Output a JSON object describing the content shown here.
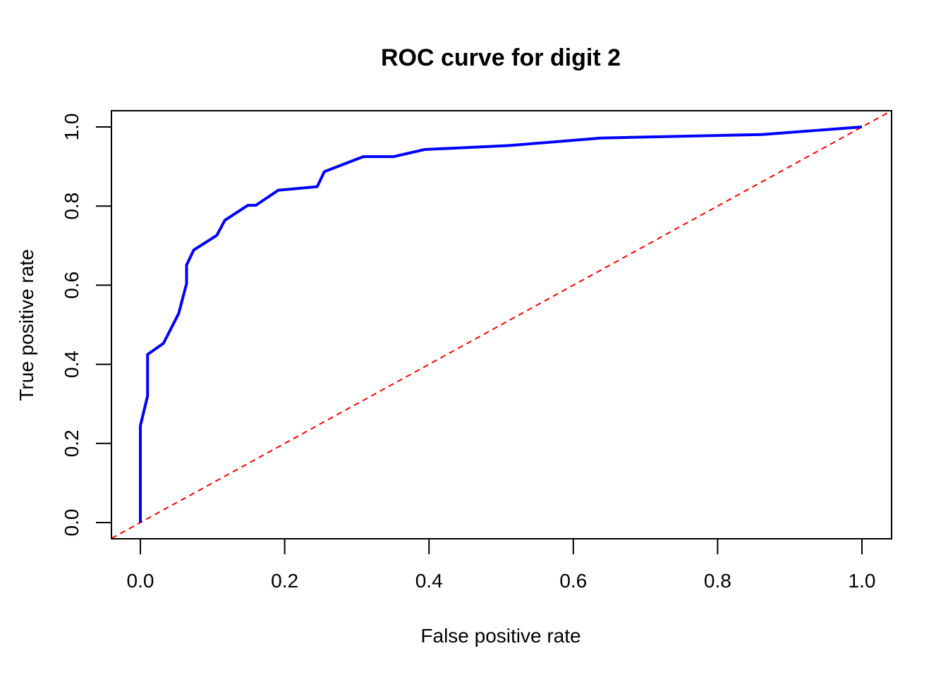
{
  "chart_data": {
    "type": "line",
    "title": "ROC curve for digit 2",
    "xlabel": "False positive rate",
    "ylabel": "True positive rate",
    "xlim": [
      0.0,
      1.0
    ],
    "ylim": [
      0.0,
      1.0
    ],
    "xticks": [
      "0.0",
      "0.2",
      "0.4",
      "0.6",
      "0.8",
      "1.0"
    ],
    "yticks": [
      "0.0",
      "0.2",
      "0.4",
      "0.6",
      "0.8",
      "1.0"
    ],
    "grid": false,
    "series": [
      {
        "color": "#0000ff",
        "style": "solid",
        "x": [
          0.0,
          0.0,
          0.01,
          0.01,
          0.032,
          0.053,
          0.064,
          0.064,
          0.074,
          0.106,
          0.117,
          0.149,
          0.16,
          0.191,
          0.245,
          0.255,
          0.309,
          0.351,
          0.394,
          0.511,
          0.638,
          0.862,
          1.0
        ],
        "y": [
          0.0,
          0.245,
          0.32,
          0.425,
          0.453,
          0.528,
          0.604,
          0.651,
          0.689,
          0.726,
          0.764,
          0.802,
          0.802,
          0.84,
          0.849,
          0.887,
          0.925,
          0.925,
          0.943,
          0.953,
          0.972,
          0.981,
          1.0
        ]
      },
      {
        "color": "#ff0000",
        "style": "dashed",
        "x": [
          -0.04,
          1.04
        ],
        "y": [
          -0.04,
          1.04
        ]
      }
    ]
  }
}
